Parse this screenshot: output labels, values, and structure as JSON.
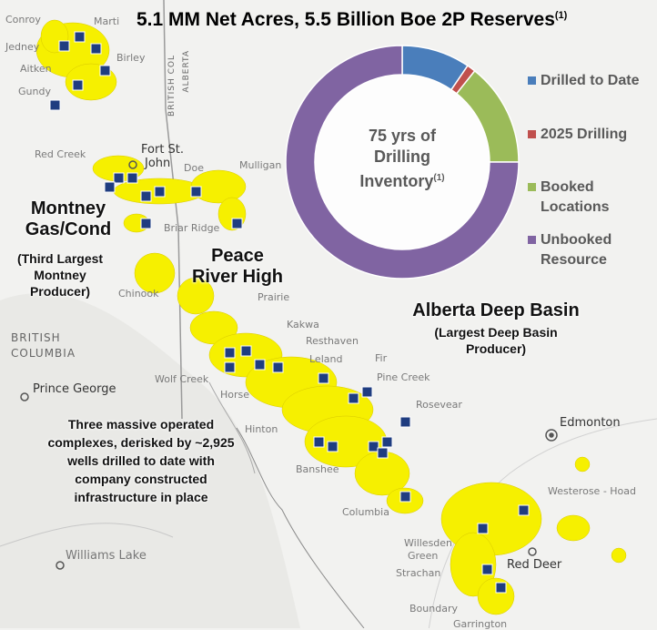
{
  "title": {
    "text": "5.1 MM Net Acres, 5.5 Billion Boe 2P Reserves",
    "footnote": "(1)"
  },
  "donut": {
    "center_lines": [
      "75 yrs of",
      "Drilling",
      "Inventory"
    ],
    "center_footnote": "(1)",
    "legend": [
      {
        "lines": [
          "Drilled to Date"
        ],
        "color": "#4a7ebb"
      },
      {
        "lines": [
          "2025 Drilling"
        ],
        "color": "#c0504d"
      },
      {
        "lines": [
          "Booked",
          "Locations"
        ],
        "color": "#9bbb59"
      },
      {
        "lines": [
          "Unbooked",
          "Resource"
        ],
        "color": "#8064a2"
      }
    ]
  },
  "chart_data": {
    "type": "pie",
    "categories": [
      "Drilled to Date",
      "2025 Drilling",
      "Booked Locations",
      "Unbooked Resource"
    ],
    "values": [
      9.5,
      1.2,
      14.3,
      75.0
    ],
    "colors": [
      "#4a7ebb",
      "#c0504d",
      "#9bbb59",
      "#8064a2"
    ]
  },
  "map": {
    "place_labels": {
      "conroy": "Conroy",
      "marti": "Marti",
      "jedney": "Jedney",
      "birley": "Birley",
      "aitken": "Aitken",
      "gundy": "Gundy",
      "red_creek": "Red Creek",
      "fort_st_john": [
        "Fort St.",
        "John"
      ],
      "doe": "Doe",
      "mulligan": "Mulligan",
      "briar_ridge": "Briar Ridge",
      "chinook": "Chinook",
      "prairie": "Prairie",
      "kakwa": "Kakwa",
      "resthaven": "Resthaven",
      "leland": "Leland",
      "fir": "Fir",
      "pine_creek": "Pine Creek",
      "wolf_creek": "Wolf Creek",
      "horse": "Horse",
      "rosevear": "Rosevear",
      "hinton": "Hinton",
      "banshee": "Banshee",
      "columbia": "Columbia",
      "prince_george": "Prince George",
      "edmonton": "Edmonton",
      "westerose": "Westerose - Hoad",
      "willesden_green": [
        "Willesden",
        "Green"
      ],
      "strachan": "Strachan",
      "red_deer": "Red Deer",
      "williams_lake": "Williams Lake",
      "boundary": "Boundary",
      "garrington": "Garrington"
    },
    "region_labels": {
      "british_columbia": [
        "BRITISH",
        "COLUMBIA"
      ],
      "border_bc": "BRITISH COL",
      "border_ab": "ALBERTA"
    },
    "play_labels": {
      "montney": [
        "Montney",
        "Gas/Cond"
      ],
      "montney_sub": [
        "(Third Largest",
        "Montney",
        "Producer)"
      ],
      "peace_river": [
        "Peace",
        "River High"
      ],
      "deep_basin": [
        "Alberta Deep Basin"
      ],
      "deep_basin_sub": [
        "(Largest Deep Basin",
        "Producer)"
      ]
    },
    "note": [
      "Three massive operated",
      "complexes, derisked by ~2,925",
      "wells drilled to date with",
      "company constructed",
      "infrastructure in place"
    ]
  }
}
